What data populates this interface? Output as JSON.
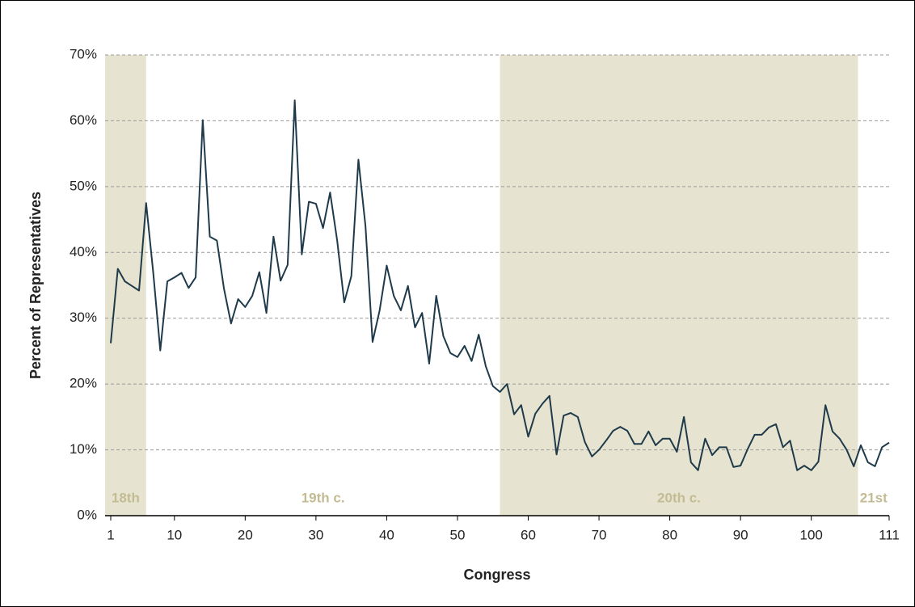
{
  "chart_data": {
    "type": "line",
    "x_label": "Congress",
    "y_label": "Percent of Representatives",
    "x": [
      1,
      2,
      3,
      4,
      5,
      6,
      7,
      8,
      9,
      10,
      11,
      12,
      13,
      14,
      15,
      16,
      17,
      18,
      19,
      20,
      21,
      22,
      23,
      24,
      25,
      26,
      27,
      28,
      29,
      30,
      31,
      32,
      33,
      34,
      35,
      36,
      37,
      38,
      39,
      40,
      41,
      42,
      43,
      44,
      45,
      46,
      47,
      48,
      49,
      50,
      51,
      52,
      53,
      54,
      55,
      56,
      57,
      58,
      59,
      60,
      61,
      62,
      63,
      64,
      65,
      66,
      67,
      68,
      69,
      70,
      71,
      72,
      73,
      74,
      75,
      76,
      77,
      78,
      79,
      80,
      81,
      82,
      83,
      84,
      85,
      86,
      87,
      88,
      89,
      90,
      91,
      92,
      93,
      94,
      95,
      96,
      97,
      98,
      99,
      100,
      101,
      102,
      103,
      104,
      105,
      106,
      107,
      108,
      109,
      110,
      111
    ],
    "series": [
      {
        "color": "#1f3a4a",
        "values": [
          26.2,
          37.5,
          35.6,
          34.9,
          34.2,
          47.5,
          37,
          25.1,
          35.6,
          36.2,
          36.9,
          34.6,
          36.2,
          60.1,
          42.4,
          41.8,
          34.5,
          29.2,
          32.9,
          31.7,
          33.4,
          37,
          30.8,
          42.4,
          35.7,
          38.1,
          63.1,
          39.7,
          47.7,
          47.4,
          43.7,
          49.1,
          41.8,
          32.4,
          36.4,
          54.1,
          44,
          26.4,
          31.2,
          38,
          33.4,
          31.2,
          34.9,
          28.6,
          30.8,
          23.1,
          33.4,
          27.3,
          24.7,
          24.1,
          25.8,
          23.5,
          27.5,
          22.7,
          19.7,
          18.8,
          20,
          15.4,
          16.8,
          12,
          15.5,
          17,
          18.2,
          9.3,
          15.2,
          15.6,
          15,
          11.2,
          9,
          10,
          11.4,
          12.9,
          13.5,
          12.9,
          10.9,
          10.9,
          12.8,
          10.7,
          11.7,
          11.7,
          9.7,
          15,
          8.1,
          6.9,
          11.7,
          9.2,
          10.4,
          10.4,
          7.4,
          7.6,
          10.1,
          12.3,
          12.3,
          13.4,
          13.9,
          10.4,
          11.4,
          6.9,
          7.6,
          6.9,
          8.2,
          16.8,
          12.8,
          11.7,
          10,
          7.5,
          10.7,
          8.1,
          7.5,
          10.4,
          11.1
        ]
      }
    ],
    "eras": [
      {
        "label": "18th",
        "start": 0.2,
        "end": 6,
        "shaded": true
      },
      {
        "label": "19th c.",
        "start": 6,
        "end": 56,
        "shaded": false
      },
      {
        "label": "20th c.",
        "start": 56,
        "end": 106.6,
        "shaded": true
      },
      {
        "label": "21st",
        "start": 106.6,
        "end": 111,
        "shaded": false
      }
    ],
    "shade_color": "#e6e4d0",
    "xlim": [
      0.2,
      111
    ],
    "xticks": [
      1,
      10,
      20,
      30,
      40,
      50,
      60,
      70,
      80,
      90,
      100,
      111
    ],
    "ylim": [
      0,
      70
    ],
    "yticks": [
      {
        "value": 0,
        "label": "0%"
      },
      {
        "value": 10,
        "label": "10%"
      },
      {
        "value": 20,
        "label": "20%"
      },
      {
        "value": 30,
        "label": "30%"
      },
      {
        "value": 40,
        "label": "40%"
      },
      {
        "value": 50,
        "label": "50%"
      },
      {
        "value": 60,
        "label": "60%"
      },
      {
        "value": 70,
        "label": "70%"
      }
    ],
    "grid": true
  }
}
